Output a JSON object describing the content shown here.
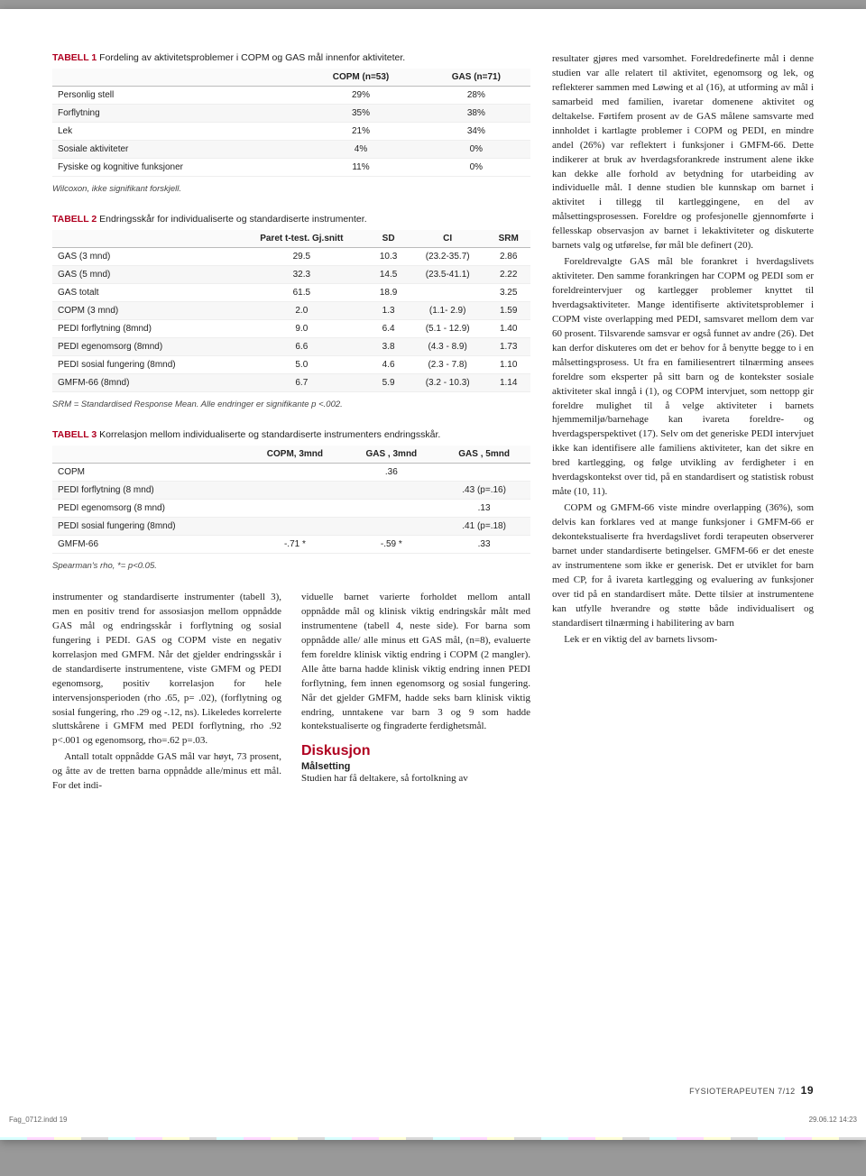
{
  "colors": {
    "accent": "#b00020",
    "grid": "#eee",
    "header_border": "#bbb",
    "alt_row": "#f7f7f7",
    "text": "#222"
  },
  "fonts": {
    "body_family": "Georgia, serif",
    "ui_family": "Arial, sans-serif",
    "body_size_pt": 11,
    "table_size_pt": 10,
    "note_size_pt": 9.5
  },
  "table1": {
    "label": "TABELL 1",
    "title": "Fordeling av aktivitetsproblemer i COPM og GAS mål innenfor aktiviteter.",
    "columns": [
      "",
      "COPM (n=53)",
      "GAS (n=71)"
    ],
    "rows": [
      [
        "Personlig stell",
        "29%",
        "28%"
      ],
      [
        "Forflytning",
        "35%",
        "38%"
      ],
      [
        "Lek",
        "21%",
        "34%"
      ],
      [
        "Sosiale aktiviteter",
        "4%",
        "0%"
      ],
      [
        "Fysiske og kognitive funksjoner",
        "11%",
        "0%"
      ]
    ],
    "note": "Wilcoxon, ikke signifikant forskjell."
  },
  "table2": {
    "label": "TABELL 2",
    "title": "Endringsskår for individualiserte og standardiserte instrumenter.",
    "columns": [
      "",
      "Paret t-test. Gj.snitt",
      "SD",
      "CI",
      "SRM"
    ],
    "rows": [
      [
        "GAS (3 mnd)",
        "29.5",
        "10.3",
        "(23.2-35.7)",
        "2.86"
      ],
      [
        "GAS (5 mnd)",
        "32.3",
        "14.5",
        "(23.5-41.1)",
        "2.22"
      ],
      [
        "GAS totalt",
        "61.5",
        "18.9",
        "",
        "3.25"
      ],
      [
        "COPM (3 mnd)",
        "2.0",
        "1.3",
        "(1.1- 2.9)",
        "1.59"
      ],
      [
        "PEDI forflytning (8mnd)",
        "9.0",
        "6.4",
        "(5.1 - 12.9)",
        "1.40"
      ],
      [
        "PEDI egenomsorg (8mnd)",
        "6.6",
        "3.8",
        "(4.3 - 8.9)",
        "1.73"
      ],
      [
        "PEDI sosial fungering (8mnd)",
        "5.0",
        "4.6",
        "(2.3 - 7.8)",
        "1.10"
      ],
      [
        "GMFM-66 (8mnd)",
        "6.7",
        "5.9",
        "(3.2 - 10.3)",
        "1.14"
      ]
    ],
    "note": "SRM = Standardised Response Mean. Alle endringer er signifikante p <.002."
  },
  "table3": {
    "label": "TABELL 3",
    "title": "Korrelasjon mellom individualiserte og standardiserte instrumenters endringsskår.",
    "columns": [
      "",
      "COPM, 3mnd",
      "GAS , 3mnd",
      "GAS , 5mnd"
    ],
    "rows": [
      [
        "COPM",
        "",
        ".36",
        ""
      ],
      [
        "PEDI forflytning (8 mnd)",
        "",
        "",
        ".43 (p=.16)"
      ],
      [
        "PEDI egenomsorg (8 mnd)",
        "",
        "",
        ".13"
      ],
      [
        "PEDI sosial fungering (8mnd)",
        "",
        "",
        ".41 (p=.18)"
      ],
      [
        "GMFM-66",
        "-.71 *",
        "-.59 *",
        ".33"
      ]
    ],
    "note": "Spearman's rho, *= p<0.05."
  },
  "left_body": {
    "p1": "instrumenter og standardiserte instrumenter (tabell 3), men en positiv trend for assosiasjon mellom oppnådde GAS mål og endringsskår i forflytning og sosial fungering i PEDI. GAS og COPM viste en negativ korrelasjon med GMFM. Når det gjelder endringsskår i de standardiserte instrumentene, viste GMFM og PEDI egenomsorg, positiv korrelasjon for hele intervensjonsperioden (rho .65, p= .02), (forflytning og sosial fungering, rho .29 og -.12, ns). Likeledes korrelerte sluttskårene i GMFM med PEDI forflytning, rho .92 p<.001 og egenomsorg, rho=.62 p=.03.",
    "p2": "Antall totalt oppnådde GAS mål var høyt, 73 prosent, og åtte av de tretten barna oppnådde alle/minus ett mål. For det indi-",
    "p3": "viduelle barnet varierte forholdet mellom antall oppnådde mål og klinisk viktig endringskår målt med instrumentene (tabell 4, neste side). For barna som oppnådde alle/ alle minus ett GAS mål, (n=8), evaluerte fem foreldre klinisk viktig endring i COPM (2 mangler). Alle åtte barna hadde klinisk viktig endring innen PEDI forflytning, fem innen egenomsorg og sosial fungering. Når det gjelder GMFM, hadde seks barn klinisk viktig endring, unntakene var barn 3 og 9 som hadde kontekstualiserte og fingraderte ferdighetsmål.",
    "h2": "Diskusjon",
    "h3": "Målsetting",
    "p4": "Studien har få deltakere, så fortolkning av"
  },
  "right_body": {
    "p1": "resultater gjøres med varsomhet. Foreldredefinerte mål i denne studien var alle relatert til aktivitet, egenomsorg og lek, og reflekterer sammen med Løwing et al (16), at utforming av mål i samarbeid med familien, ivaretar domenene aktivitet og deltakelse. Førtifem prosent av de GAS målene samsvarte med innholdet i kartlagte problemer i COPM og PEDI, en mindre andel (26%) var reflektert i funksjoner i GMFM-66. Dette indikerer at bruk av hverdagsforankrede instrument alene ikke kan dekke alle forhold av betydning for utarbeiding av individuelle mål. I denne studien ble kunnskap om barnet i aktivitet i tillegg til kartleggingene, en del av målsettingsprosessen. Foreldre og profesjonelle gjennomførte i fellesskap observasjon av barnet i lekaktiviteter og diskuterte barnets valg og utførelse, før mål ble definert (20).",
    "p2": "Foreldrevalgte GAS mål ble forankret i hverdagslivets aktiviteter. Den samme forankringen har COPM og PEDI som er foreldreintervjuer og kartlegger problemer knyttet til hverdagsaktiviteter. Mange identifiserte aktivitetsproblemer i COPM viste overlapping med PEDI, samsvaret mellom dem var 60 prosent. Tilsvarende samsvar er også funnet av andre (26). Det kan derfor diskuteres om det er behov for å benytte begge to i en målsettingsprosess. Ut fra en familiesentrert tilnærming ansees foreldre som eksperter på sitt barn og de kontekster sosiale aktiviteter skal inngå i (1), og COPM intervjuet, som nettopp gir foreldre mulighet til å velge aktiviteter i barnets hjemmemiljø/barnehage kan ivareta foreldre- og hverdagsperspektivet (17). Selv om det generiske PEDI intervjuet ikke kan identifisere alle familiens aktiviteter, kan det sikre en bred kartlegging, og følge utvikling av ferdigheter i en hverdagskontekst over tid, på en standardisert og statistisk robust måte (10, 11).",
    "p3": "COPM og GMFM-66 viste mindre overlapping (36%), som delvis kan forklares ved at mange funksjoner i GMFM-66 er dekontekstualiserte fra hverdagslivet fordi terapeuten observerer barnet under standardiserte betingelser. GMFM-66 er det eneste av instrumentene som ikke er generisk. Det er utviklet for barn med CP, for å ivareta kartlegging og evaluering av funksjoner over tid på en standardisert måte. Dette tilsier at instrumentene kan utfylle hverandre og støtte både individualisert og standardisert tilnærming i habilitering av barn",
    "p4": "Lek er en viktig del av barnets livsom-"
  },
  "footer": {
    "journal": "FYSIOTERAPEUTEN",
    "issue": "7/12",
    "page": "19"
  },
  "printmark": {
    "file": "Fag_0712.indd   19",
    "ts": "29.06.12   14:23"
  }
}
